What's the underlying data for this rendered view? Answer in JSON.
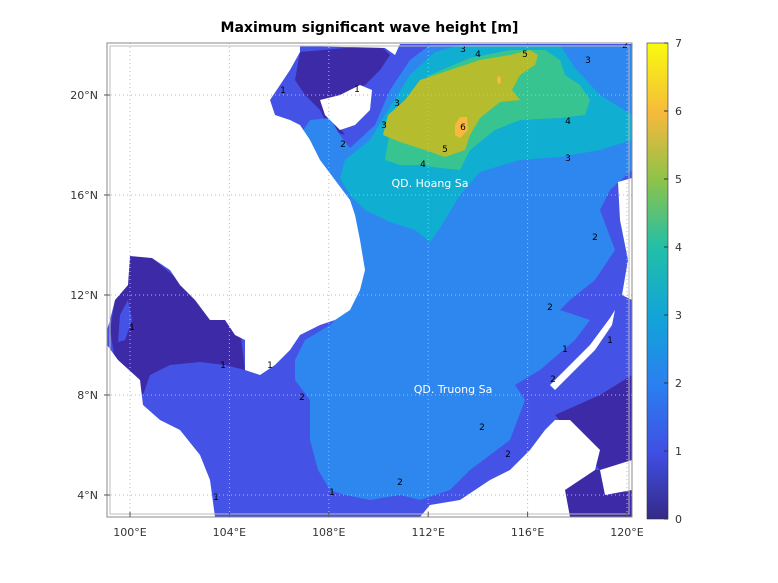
{
  "title": "Maximum significant wave height [m]",
  "map": {
    "lon_range": [
      99.1,
      120.2
    ],
    "lat_range": [
      3.1,
      22.1
    ],
    "x_ticks": [
      "100°E",
      "104°E",
      "108°E",
      "112°E",
      "116°E",
      "120°E"
    ],
    "y_ticks": [
      "4°N",
      "8°N",
      "12°N",
      "16°N",
      "20°N"
    ],
    "grid": "dotted",
    "annotations": [
      "QD. Hoang Sa",
      "QD. Truong Sa"
    ],
    "contour_labels": [
      "1",
      "1",
      "2",
      "3",
      "3",
      "2",
      "3",
      "4",
      "5",
      "6",
      "5",
      "4",
      "3",
      "4",
      "3",
      "2",
      "2",
      "1",
      "1",
      "1",
      "2",
      "1",
      "2",
      "2",
      "2",
      "2",
      "1",
      "1",
      "2",
      "1"
    ],
    "land_color": "#ffffff"
  },
  "colorbar": {
    "ticks": [
      "0",
      "1",
      "2",
      "3",
      "4",
      "5",
      "6",
      "7"
    ],
    "range": [
      0,
      7
    ],
    "colormap": "parula",
    "level_colors": [
      "#3d2aa6",
      "#4552e6",
      "#2e86ef",
      "#10aed1",
      "#37c490",
      "#b5bd2e",
      "#fbb83e",
      "#f9fb0e"
    ]
  }
}
